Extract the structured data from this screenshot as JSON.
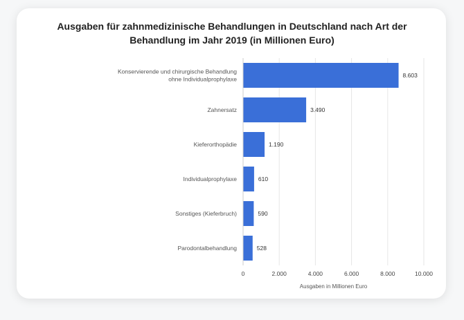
{
  "chart_data": {
    "type": "bar",
    "orientation": "horizontal",
    "title_lines": [
      "Ausgaben für zahnmedizinische Behandlungen in Deutschland nach Art der",
      "Behandlung im Jahr 2019 (in Millionen Euro)"
    ],
    "categories": [
      [
        "Konservierende und chirurgische Behandlung",
        "ohne Individualprophylaxe"
      ],
      [
        "Zahnersatz"
      ],
      [
        "Kieferorthopädie"
      ],
      [
        "Individualprophylaxe"
      ],
      [
        "Sonstiges (Kieferbruch)"
      ],
      [
        "Parodontalbehandlung"
      ]
    ],
    "values": [
      8603,
      3490,
      1190,
      610,
      590,
      528
    ],
    "value_labels": [
      "8.603",
      "3.490",
      "1.190",
      "610",
      "590",
      "528"
    ],
    "xticks": [
      0,
      2000,
      4000,
      6000,
      8000,
      10000
    ],
    "xtick_labels": [
      "0",
      "2.000",
      "4.000",
      "6.000",
      "8.000",
      "10.000"
    ],
    "xlim": [
      0,
      10000
    ],
    "xlabel": "Ausgaben in Millionen Euro",
    "grid": true,
    "bar_color": "#3a6fd8",
    "grid_color": "#e6e6e6"
  }
}
